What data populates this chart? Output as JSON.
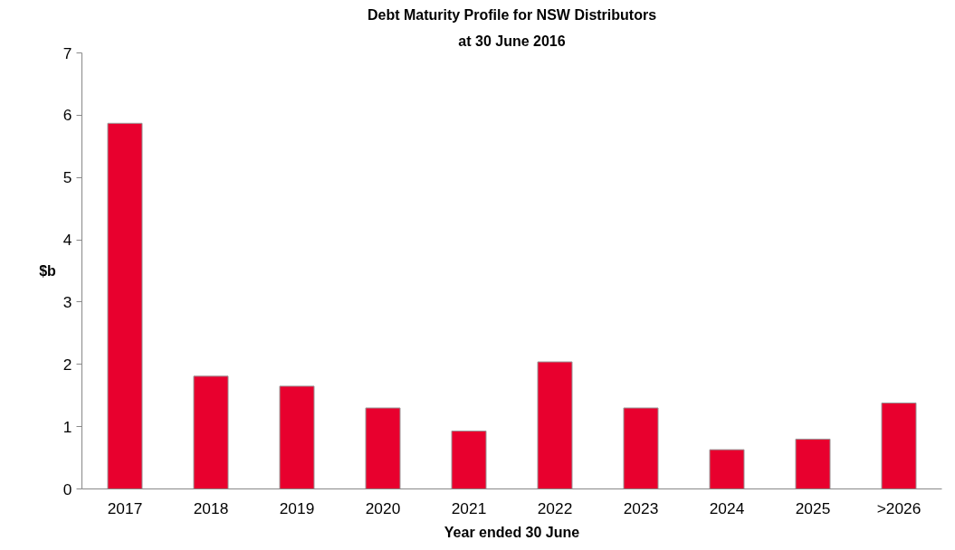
{
  "chart_data": {
    "type": "bar",
    "title": "Debt Maturity Profile for NSW Distributors",
    "subtitle": "at 30 June 2016",
    "xlabel": "Year ended 30 June",
    "ylabel": "$b",
    "categories": [
      "2017",
      "2018",
      "2019",
      "2020",
      "2021",
      "2022",
      "2023",
      "2024",
      "2025",
      ">2026"
    ],
    "values": [
      5.87,
      1.81,
      1.65,
      1.3,
      0.93,
      2.04,
      1.3,
      0.63,
      0.8,
      1.38
    ],
    "color": "#e8002e",
    "ylim": [
      0,
      7
    ],
    "yticks": [
      0,
      1,
      2,
      3,
      4,
      5,
      6,
      7
    ],
    "grid": false
  }
}
